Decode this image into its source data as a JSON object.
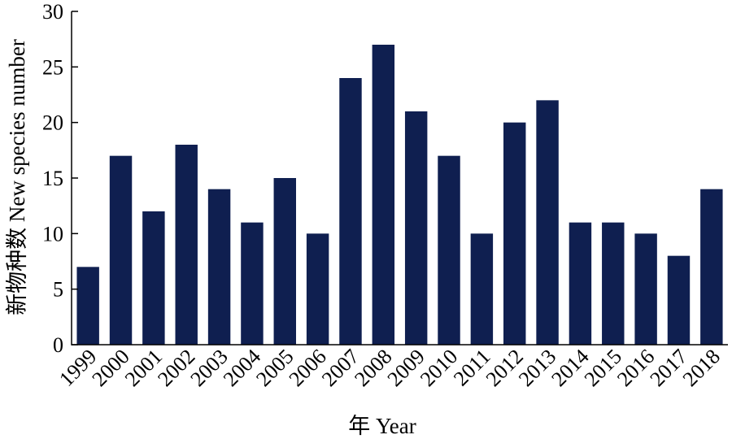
{
  "chart_data": {
    "type": "bar",
    "categories": [
      "1999",
      "2000",
      "2001",
      "2002",
      "2003",
      "2004",
      "2005",
      "2006",
      "2007",
      "2008",
      "2009",
      "2010",
      "2011",
      "2012",
      "2013",
      "2014",
      "2015",
      "2016",
      "2017",
      "2018"
    ],
    "values": [
      7,
      17,
      12,
      18,
      14,
      11,
      15,
      10,
      24,
      27,
      21,
      17,
      10,
      20,
      22,
      11,
      11,
      10,
      8,
      14
    ],
    "xlabel": "年 Year",
    "ylabel": "新物种数 New species number",
    "ylim": [
      0,
      30
    ],
    "yticks": [
      0,
      5,
      10,
      15,
      20,
      25,
      30
    ],
    "bar_color": "#0f1f50",
    "grid": false,
    "legend": "none"
  }
}
